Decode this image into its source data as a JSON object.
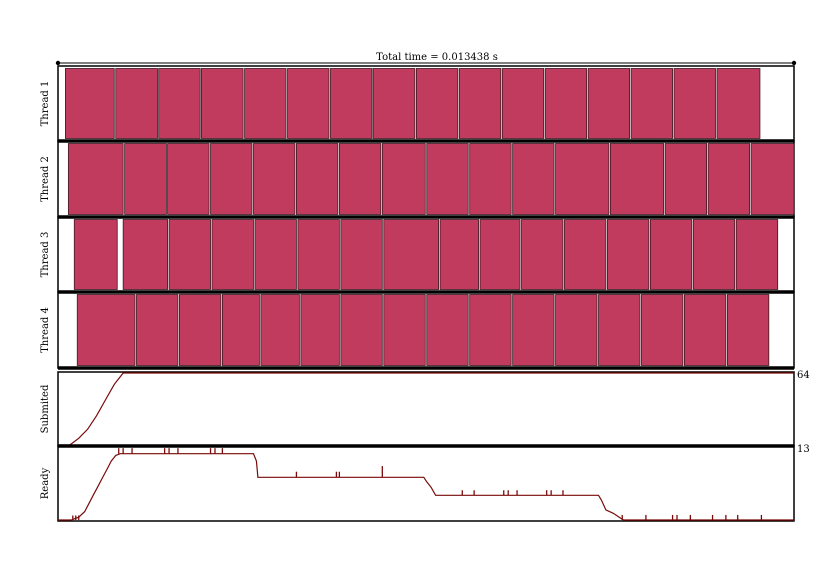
{
  "chart_data": {
    "type": "task-timeline",
    "title": "Total time = 0.013438 s",
    "threads": [
      {
        "name": "Thread 1",
        "tasks": [
          [
            0.25,
            1.9
          ],
          [
            1.95,
            3.36
          ],
          [
            3.4,
            4.8
          ],
          [
            4.84,
            6.25
          ],
          [
            6.3,
            7.7
          ],
          [
            7.75,
            9.15
          ],
          [
            9.2,
            10.6
          ],
          [
            10.64,
            12.05
          ],
          [
            12.1,
            13.5
          ],
          [
            13.55,
            14.95
          ],
          [
            15.0,
            16.4
          ],
          [
            16.45,
            17.85
          ],
          [
            17.9,
            19.3
          ],
          [
            19.35,
            20.75
          ],
          [
            20.8,
            22.2
          ],
          [
            22.25,
            23.7
          ]
        ]
      },
      {
        "name": "Thread 2",
        "tasks": [
          [
            0.35,
            2.2
          ],
          [
            2.25,
            3.66
          ],
          [
            3.7,
            5.1
          ],
          [
            5.15,
            6.55
          ],
          [
            6.6,
            8.0
          ],
          [
            8.05,
            9.45
          ],
          [
            9.5,
            10.9
          ],
          [
            10.95,
            12.4
          ],
          [
            12.45,
            13.85
          ],
          [
            13.9,
            15.3
          ],
          [
            15.35,
            16.75
          ],
          [
            16.8,
            18.6
          ],
          [
            18.65,
            20.45
          ],
          [
            20.5,
            21.9
          ],
          [
            21.95,
            23.35
          ],
          [
            23.4,
            24.85
          ]
        ]
      },
      {
        "name": "Thread 3",
        "tasks": [
          [
            0.55,
            2.0
          ],
          [
            2.2,
            3.7
          ],
          [
            3.75,
            5.15
          ],
          [
            5.2,
            6.6
          ],
          [
            6.65,
            8.05
          ],
          [
            8.1,
            9.5
          ],
          [
            9.55,
            10.95
          ],
          [
            11.0,
            12.85
          ],
          [
            12.9,
            14.2
          ],
          [
            14.25,
            15.6
          ],
          [
            15.65,
            17.05
          ],
          [
            17.1,
            18.5
          ],
          [
            18.55,
            19.95
          ],
          [
            20.0,
            21.4
          ],
          [
            21.45,
            22.85
          ],
          [
            22.9,
            24.3
          ]
        ]
      },
      {
        "name": "Thread 4",
        "tasks": [
          [
            0.65,
            2.6
          ],
          [
            2.65,
            4.05
          ],
          [
            4.1,
            5.5
          ],
          [
            5.55,
            6.8
          ],
          [
            6.85,
            8.15
          ],
          [
            8.2,
            9.5
          ],
          [
            9.55,
            10.95
          ],
          [
            11.0,
            12.4
          ],
          [
            12.45,
            13.85
          ],
          [
            13.9,
            15.3
          ],
          [
            15.35,
            16.75
          ],
          [
            16.8,
            18.2
          ],
          [
            18.25,
            19.65
          ],
          [
            19.7,
            21.1
          ],
          [
            21.15,
            22.55
          ],
          [
            22.6,
            24.0
          ]
        ]
      }
    ],
    "submitted": {
      "name": "Submited",
      "max_label": "64",
      "ymax": 64,
      "points": [
        [
          0,
          0
        ],
        [
          0.4,
          0
        ],
        [
          0.7,
          6
        ],
        [
          1.0,
          14
        ],
        [
          1.3,
          26
        ],
        [
          1.6,
          40
        ],
        [
          1.9,
          54
        ],
        [
          2.2,
          64
        ],
        [
          24.85,
          64
        ]
      ]
    },
    "ready": {
      "name": "Ready",
      "max_label": "13",
      "ymax": 13,
      "points": [
        [
          0,
          0
        ],
        [
          0.45,
          0
        ],
        [
          0.7,
          0.5
        ],
        [
          0.9,
          1.5
        ],
        [
          1.05,
          3
        ],
        [
          1.2,
          4.5
        ],
        [
          1.35,
          6
        ],
        [
          1.5,
          7.5
        ],
        [
          1.65,
          9
        ],
        [
          1.8,
          10.5
        ],
        [
          1.95,
          11.5
        ],
        [
          2.1,
          11.8
        ],
        [
          6.6,
          11.8
        ],
        [
          6.7,
          10.5
        ],
        [
          6.75,
          7.6
        ],
        [
          12.35,
          7.6
        ],
        [
          12.45,
          6.8
        ],
        [
          12.6,
          5.8
        ],
        [
          12.75,
          4.4
        ],
        [
          18.25,
          4.4
        ],
        [
          18.35,
          3.5
        ],
        [
          18.5,
          1.8
        ],
        [
          18.75,
          1.2
        ],
        [
          19.0,
          0.3
        ],
        [
          19.1,
          0
        ],
        [
          24.85,
          0
        ]
      ],
      "spikes": [
        [
          0.5,
          0,
          0.8
        ],
        [
          0.6,
          0,
          0.8
        ],
        [
          0.7,
          0,
          0.8
        ],
        [
          2.05,
          11.8,
          12.8
        ],
        [
          2.2,
          11.8,
          12.8
        ],
        [
          2.5,
          11.8,
          12.8
        ],
        [
          3.6,
          11.8,
          12.8
        ],
        [
          3.75,
          11.8,
          12.8
        ],
        [
          4.05,
          11.8,
          12.8
        ],
        [
          5.15,
          11.8,
          12.8
        ],
        [
          5.3,
          11.8,
          12.8
        ],
        [
          5.55,
          11.8,
          12.8
        ],
        [
          8.05,
          7.6,
          8.6
        ],
        [
          9.4,
          7.6,
          8.6
        ],
        [
          9.5,
          7.6,
          8.6
        ],
        [
          10.95,
          7.6,
          9.6
        ],
        [
          13.65,
          4.4,
          5.3
        ],
        [
          14.05,
          4.4,
          5.3
        ],
        [
          15.05,
          4.4,
          5.3
        ],
        [
          15.2,
          4.4,
          5.3
        ],
        [
          15.5,
          4.4,
          5.3
        ],
        [
          16.5,
          4.4,
          5.3
        ],
        [
          16.65,
          4.4,
          5.3
        ],
        [
          17.05,
          4.4,
          5.3
        ],
        [
          19.05,
          0,
          0.9
        ],
        [
          19.85,
          0,
          0.9
        ],
        [
          20.75,
          0,
          0.9
        ],
        [
          20.9,
          0,
          0.9
        ],
        [
          21.35,
          0,
          0.9
        ],
        [
          22.1,
          0,
          0.9
        ],
        [
          22.55,
          0,
          0.9
        ],
        [
          22.95,
          0,
          0.9
        ],
        [
          23.75,
          0,
          0.9
        ]
      ]
    },
    "xlim": [
      0,
      24.85
    ],
    "colors": {
      "task_fill": "#c13b5f",
      "task_stroke": "#3a1a22",
      "curve": "#7a0a0a",
      "frame": "#000000"
    }
  }
}
